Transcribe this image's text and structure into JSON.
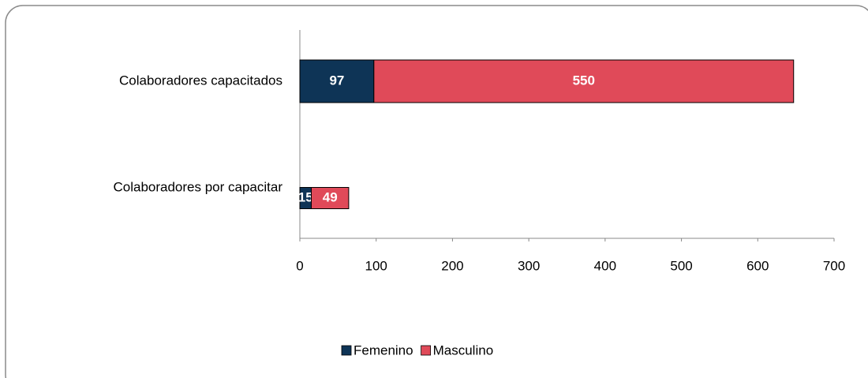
{
  "chart_data": {
    "type": "bar",
    "orientation": "horizontal",
    "stacked": true,
    "categories": [
      "Colaboradores capacitados",
      "Colaboradores por capacitar"
    ],
    "series": [
      {
        "name": "Femenino",
        "color": "#0e3456",
        "values": [
          97,
          15
        ]
      },
      {
        "name": "Masculino",
        "color": "#e04a59",
        "values": [
          550,
          49
        ]
      }
    ],
    "xlim": [
      0,
      700
    ],
    "xticks": [
      0,
      100,
      200,
      300,
      400,
      500,
      600,
      700
    ],
    "grid": false,
    "legend": "bottom",
    "data_labels": true
  }
}
